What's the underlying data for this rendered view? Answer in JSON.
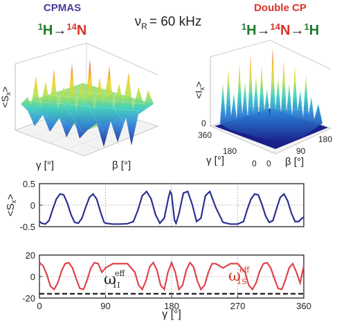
{
  "header": {
    "left_title": "CPMAS",
    "left_formula": {
      "iso1_mass": "1",
      "iso1_sym": "H",
      "arrow": "→",
      "iso2_mass": "14",
      "iso2_sym": "N"
    },
    "center_label": {
      "nu": "ν",
      "sub": "R",
      "eq": "= 60 kHz"
    },
    "right_title": "Double CP",
    "right_formula": {
      "iso1_mass": "1",
      "iso1_sym": "H",
      "arrow1": "→",
      "iso2_mass": "14",
      "iso2_sym": "N",
      "arrow2": "→",
      "iso3_mass": "1",
      "iso3_sym": "H"
    }
  },
  "colors": {
    "purple": "#4a3a9c",
    "red": "#d8332a",
    "green": "#1f7a2a",
    "curve_blue": "#2b2f8f",
    "curve_red": "#e0434a"
  },
  "surface_left": {
    "zlabel_main": "<S",
    "zlabel_sub": "x",
    "zlabel_end": ">",
    "xlabel": "γ [°]",
    "ylabel": "β [°]"
  },
  "surface_right": {
    "zlabel_main": "<I",
    "zlabel_sub": "x",
    "zlabel_end": ">",
    "xlabel": "γ [°]",
    "ylabel": "β [°]",
    "z_tick_zero": "0",
    "x_ticks": [
      "360",
      "180",
      "0"
    ],
    "y_ticks": [
      "0",
      "90",
      "180"
    ]
  },
  "chart_data": [
    {
      "type": "line",
      "ylabel_main": "<S",
      "ylabel_sub": "x",
      "ylabel_end": ">",
      "ylim": [
        -0.5,
        0.5
      ],
      "yticks": [
        "0.5",
        "0",
        "-0.5"
      ],
      "xlim": [
        0,
        360
      ],
      "grid": true,
      "series": [
        {
          "x": [
            0,
            3,
            8,
            13,
            18,
            23,
            28,
            33,
            38,
            43,
            48,
            53,
            58,
            63,
            68,
            73,
            78,
            83,
            88,
            90,
            100,
            110,
            120,
            128,
            134,
            140,
            146,
            152,
            158,
            164,
            170,
            176,
            178,
            180,
            182,
            184,
            186,
            190,
            196,
            202,
            208,
            214,
            220,
            226,
            232,
            240,
            250,
            260,
            270,
            278,
            283,
            288,
            293,
            298,
            303,
            308,
            313,
            318,
            323,
            328,
            333,
            338,
            343,
            348,
            353,
            358,
            360
          ],
          "values": [
            -0.38,
            -0.42,
            -0.44,
            -0.36,
            -0.1,
            0.14,
            0.26,
            0.24,
            0.05,
            -0.22,
            -0.4,
            -0.42,
            -0.3,
            -0.05,
            0.18,
            0.26,
            0.14,
            -0.15,
            -0.4,
            -0.42,
            -0.44,
            -0.44,
            -0.43,
            -0.38,
            -0.12,
            0.22,
            0.32,
            0.15,
            -0.22,
            -0.42,
            -0.3,
            0.2,
            0.32,
            0.25,
            -0.05,
            -0.35,
            -0.42,
            -0.2,
            0.28,
            0.32,
            0.02,
            -0.38,
            -0.3,
            0.22,
            0.32,
            -0.05,
            -0.4,
            -0.44,
            -0.44,
            -0.38,
            -0.1,
            0.14,
            0.26,
            0.24,
            0.02,
            -0.25,
            -0.4,
            -0.36,
            -0.08,
            0.18,
            0.26,
            0.1,
            -0.18,
            -0.38,
            -0.38,
            -0.3,
            -0.28
          ]
        }
      ]
    },
    {
      "type": "line",
      "ylim": [
        -20,
        20
      ],
      "yticks": [
        "20",
        "0",
        "-20"
      ],
      "xlim": [
        0,
        360
      ],
      "xticks": [
        "0",
        "90",
        "180",
        "270",
        "360"
      ],
      "xlabel": "γ [°]",
      "grid": true,
      "annotations": [
        {
          "text": "ω",
          "sup": "eff",
          "sub": "1I"
        },
        {
          "text": "ω",
          "sup": "eff",
          "sub": "1S"
        }
      ],
      "series": [
        {
          "x": [
            0,
            5,
            10,
            15,
            20,
            25,
            30,
            35,
            40,
            45,
            50,
            55,
            60,
            65,
            70,
            75,
            80,
            85,
            90,
            100,
            110,
            120,
            130,
            135,
            140,
            145,
            150,
            155,
            160,
            165,
            170,
            175,
            180,
            185,
            190,
            195,
            200,
            205,
            210,
            215,
            220,
            225,
            230,
            235,
            240,
            245,
            250,
            260,
            270,
            280,
            285,
            290,
            295,
            300,
            305,
            310,
            315,
            320,
            325,
            330,
            335,
            340,
            345,
            350,
            355,
            360
          ],
          "values": [
            13,
            10,
            2,
            -9,
            -12,
            -6,
            5,
            12,
            13,
            8,
            -2,
            -11,
            -12,
            -3,
            8,
            13,
            12,
            4,
            8,
            12,
            12,
            12,
            4,
            -8,
            -12,
            -4,
            9,
            13,
            6,
            -8,
            -12,
            4,
            13,
            4,
            -12,
            -8,
            6,
            13,
            9,
            -4,
            -12,
            -8,
            4,
            12,
            12,
            10,
            8,
            12,
            12,
            4,
            -8,
            -12,
            -6,
            5,
            12,
            13,
            8,
            -2,
            -11,
            -12,
            -3,
            8,
            12,
            4,
            -6,
            10
          ]
        },
        {
          "x": [
            0,
            360
          ],
          "values": [
            -16,
            -16
          ]
        }
      ]
    }
  ]
}
